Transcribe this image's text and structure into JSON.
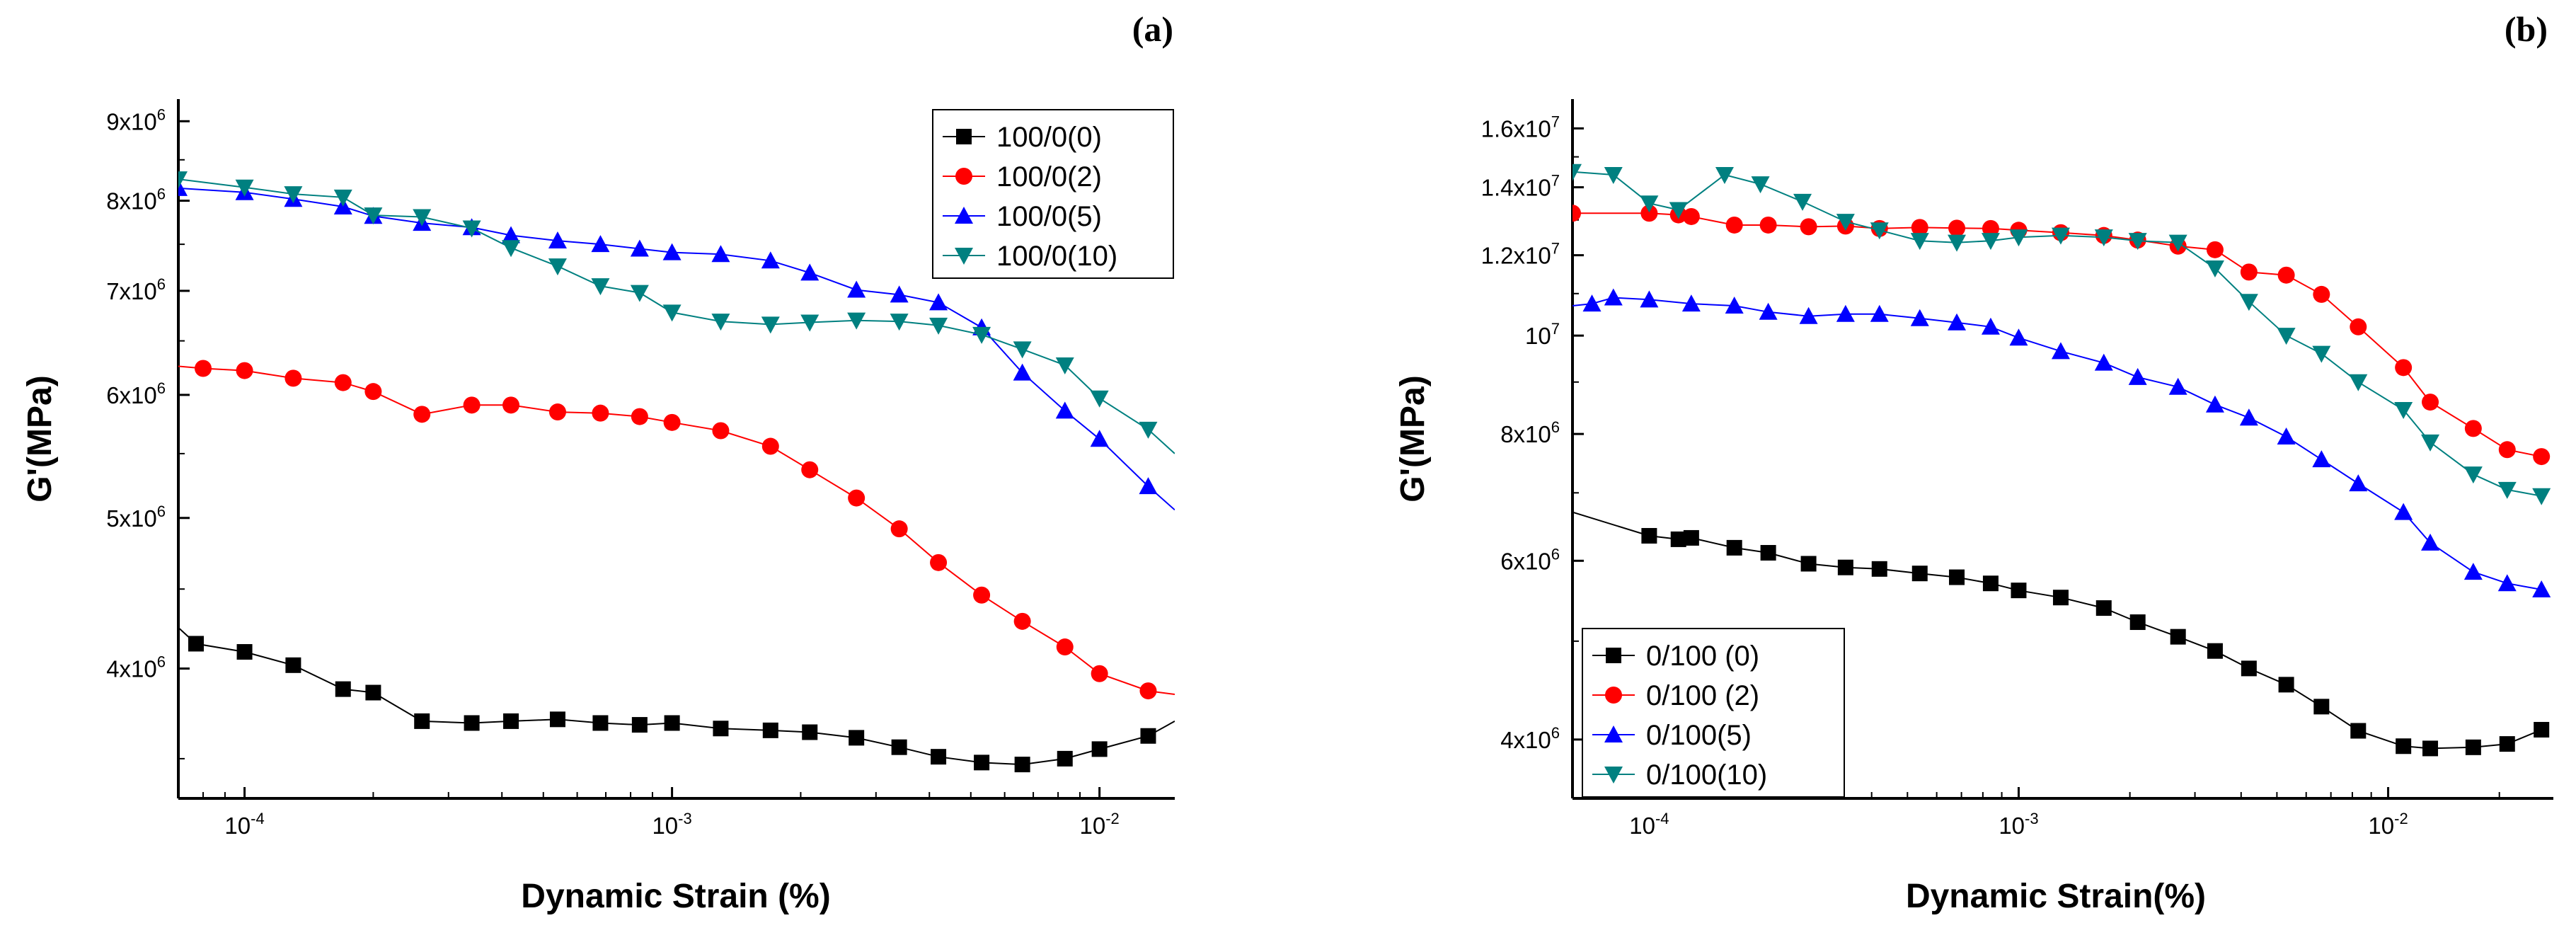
{
  "chart_data": [
    {
      "type": "line",
      "panel_label": "(a)",
      "xscale": "log",
      "yscale": "log",
      "xlabel": "Dynamic Strain (%)",
      "ylabel": "G'(MPa)",
      "xlim": [
        7e-05,
        0.015
      ],
      "ylim": [
        3300000,
        9300000
      ],
      "xticks": [
        {
          "value": 0.0001,
          "label": "10",
          "exp": "-4"
        },
        {
          "value": 0.001,
          "label": "10",
          "exp": "-3"
        },
        {
          "value": 0.01,
          "label": "10",
          "exp": "-2"
        }
      ],
      "yticks": [
        {
          "value": 4000000,
          "label": "4x10",
          "exp": "6"
        },
        {
          "value": 5000000,
          "label": "5x10",
          "exp": "6"
        },
        {
          "value": 6000000,
          "label": "6x10",
          "exp": "6"
        },
        {
          "value": 7000000,
          "label": "7x10",
          "exp": "6"
        },
        {
          "value": 8000000,
          "label": "8x10",
          "exp": "6"
        },
        {
          "value": 9000000,
          "label": "9x10",
          "exp": "6"
        }
      ],
      "legend_position": "top-right",
      "series": [
        {
          "name": "100/0(0)",
          "color": "#000000",
          "marker": "square",
          "x": [
            7e-05,
            7.7e-05,
            0.0001,
            0.00013,
            0.00017,
            0.0002,
            0.00026,
            0.00034,
            0.00042,
            0.00054,
            0.00068,
            0.00084,
            0.001,
            0.0013,
            0.0017,
            0.0021,
            0.0027,
            0.0034,
            0.0042,
            0.0053,
            0.0066,
            0.0083,
            0.01,
            0.013,
            0.015
          ],
          "y": [
            4250000,
            4150000,
            4100000,
            4020000,
            3880000,
            3860000,
            3700000,
            3690000,
            3700000,
            3710000,
            3690000,
            3680000,
            3690000,
            3660000,
            3650000,
            3640000,
            3610000,
            3560000,
            3510000,
            3480000,
            3470000,
            3500000,
            3550000,
            3620000,
            3700000
          ],
          "mark_from": 1,
          "mark_to": 23
        },
        {
          "name": "100/0(2)",
          "color": "#ff0000",
          "marker": "circle",
          "x": [
            7e-05,
            8e-05,
            0.0001,
            0.00013,
            0.00017,
            0.0002,
            0.00026,
            0.00034,
            0.00042,
            0.00054,
            0.00068,
            0.00084,
            0.001,
            0.0013,
            0.0017,
            0.0021,
            0.0027,
            0.0034,
            0.0042,
            0.0053,
            0.0066,
            0.0083,
            0.01,
            0.013,
            0.015
          ],
          "y": [
            6260000,
            6240000,
            6220000,
            6150000,
            6110000,
            6030000,
            5830000,
            5910000,
            5910000,
            5850000,
            5840000,
            5810000,
            5760000,
            5690000,
            5560000,
            5370000,
            5150000,
            4920000,
            4680000,
            4460000,
            4290000,
            4130000,
            3970000,
            3870000,
            3850000
          ],
          "mark_from": 1,
          "mark_to": 23
        },
        {
          "name": "100/0(5)",
          "color": "#0000ff",
          "marker": "triangle-up",
          "x": [
            7e-05,
            0.0001,
            0.00013,
            0.00017,
            0.0002,
            0.00026,
            0.00034,
            0.00042,
            0.00054,
            0.00068,
            0.00084,
            0.001,
            0.0013,
            0.0017,
            0.0021,
            0.0027,
            0.0034,
            0.0042,
            0.0053,
            0.0066,
            0.0083,
            0.01,
            0.013,
            0.015
          ],
          "y": [
            8150000,
            8100000,
            8020000,
            7930000,
            7820000,
            7740000,
            7690000,
            7600000,
            7540000,
            7500000,
            7450000,
            7410000,
            7390000,
            7320000,
            7190000,
            7010000,
            6960000,
            6880000,
            6630000,
            6200000,
            5860000,
            5620000,
            5240000,
            5060000
          ],
          "mark_from": 0,
          "mark_to": 22
        },
        {
          "name": "100/0(10)",
          "color": "#008080",
          "marker": "triangle-down",
          "x": [
            7e-05,
            0.0001,
            0.00013,
            0.00017,
            0.0002,
            0.00026,
            0.00034,
            0.00042,
            0.00054,
            0.00068,
            0.00084,
            0.001,
            0.0013,
            0.0017,
            0.0021,
            0.0027,
            0.0034,
            0.0042,
            0.0053,
            0.0066,
            0.0083,
            0.01,
            0.013,
            0.015
          ],
          "y": [
            8260000,
            8160000,
            8080000,
            8040000,
            7830000,
            7810000,
            7680000,
            7460000,
            7260000,
            7050000,
            6980000,
            6780000,
            6690000,
            6660000,
            6680000,
            6700000,
            6690000,
            6650000,
            6560000,
            6420000,
            6270000,
            5970000,
            5700000,
            5500000
          ],
          "mark_from": 0,
          "mark_to": 22
        }
      ],
      "legend": [
        "100/0(0)",
        "100/0(2)",
        "100/0(5)",
        "100/0(10)"
      ]
    },
    {
      "type": "line",
      "panel_label": "(b)",
      "xscale": "log",
      "yscale": "log",
      "xlabel": "Dynamic Strain(%)",
      "ylabel": "G'(MPa)",
      "xlim": [
        6.2e-05,
        0.028
      ],
      "ylim": [
        3500000,
        17100000
      ],
      "xticks": [
        {
          "value": 0.0001,
          "label": "10",
          "exp": "-4"
        },
        {
          "value": 0.001,
          "label": "10",
          "exp": "-3"
        },
        {
          "value": 0.01,
          "label": "10",
          "exp": "-2"
        }
      ],
      "yticks": [
        {
          "value": 4000000,
          "label": "4x10",
          "exp": "6"
        },
        {
          "value": 6000000,
          "label": "6x10",
          "exp": "6"
        },
        {
          "value": 8000000,
          "label": "8x10",
          "exp": "6"
        },
        {
          "value": 10000000,
          "label": "10",
          "exp": "7"
        },
        {
          "value": 12000000,
          "label": "1.2x10",
          "exp": "7"
        },
        {
          "value": 14000000,
          "label": "1.4x10",
          "exp": "7"
        },
        {
          "value": 16000000,
          "label": "1.6x10",
          "exp": "7"
        }
      ],
      "legend_position": "bottom-left",
      "series": [
        {
          "name": "0/100 (0)",
          "color": "#000000",
          "marker": "square",
          "x": [
            6.2e-05,
            0.0001,
            0.00012,
            0.00013,
            0.00017,
            0.00021,
            0.00027,
            0.00034,
            0.00042,
            0.00054,
            0.00068,
            0.00084,
            0.001,
            0.0013,
            0.0017,
            0.0021,
            0.0027,
            0.0034,
            0.0042,
            0.0053,
            0.0066,
            0.0083,
            0.011,
            0.013,
            0.017,
            0.021,
            0.026
          ],
          "y": [
            6700000,
            6350000,
            6300000,
            6320000,
            6180000,
            6110000,
            5960000,
            5910000,
            5890000,
            5830000,
            5780000,
            5700000,
            5610000,
            5520000,
            5390000,
            5220000,
            5050000,
            4890000,
            4700000,
            4530000,
            4310000,
            4080000,
            3940000,
            3920000,
            3930000,
            3960000,
            4090000
          ],
          "mark_from": 1,
          "mark_to": 26
        },
        {
          "name": "0/100 (2)",
          "color": "#ff0000",
          "marker": "circle",
          "x": [
            6.2e-05,
            0.0001,
            0.00012,
            0.00013,
            0.00017,
            0.00021,
            0.00027,
            0.00034,
            0.00042,
            0.00054,
            0.00068,
            0.00084,
            0.001,
            0.0013,
            0.0017,
            0.0021,
            0.0027,
            0.0034,
            0.0042,
            0.0053,
            0.0066,
            0.0083,
            0.011,
            0.013,
            0.017,
            0.021,
            0.026
          ],
          "y": [
            13200000,
            13200000,
            13150000,
            13100000,
            12850000,
            12850000,
            12800000,
            12820000,
            12750000,
            12780000,
            12760000,
            12750000,
            12700000,
            12630000,
            12550000,
            12420000,
            12250000,
            12150000,
            11550000,
            11470000,
            10980000,
            10200000,
            9300000,
            8600000,
            8100000,
            7720000,
            7600000
          ],
          "mark_from": 0,
          "mark_to": 26
        },
        {
          "name": "0/100(5)",
          "color": "#0000ff",
          "marker": "triangle-up",
          "x": [
            6.2e-05,
            7e-05,
            8e-05,
            0.0001,
            0.00013,
            0.00017,
            0.00021,
            0.00027,
            0.00034,
            0.00042,
            0.00054,
            0.00068,
            0.00084,
            0.001,
            0.0013,
            0.0017,
            0.0021,
            0.0027,
            0.0034,
            0.0042,
            0.0053,
            0.0066,
            0.0083,
            0.011,
            0.013,
            0.017,
            0.021,
            0.026
          ],
          "y": [
            10700000,
            10750000,
            10900000,
            10850000,
            10750000,
            10700000,
            10550000,
            10450000,
            10500000,
            10500000,
            10400000,
            10300000,
            10200000,
            9950000,
            9650000,
            9400000,
            9100000,
            8900000,
            8550000,
            8300000,
            7950000,
            7550000,
            7150000,
            6700000,
            6250000,
            5850000,
            5700000,
            5620000
          ],
          "mark_from": 1,
          "mark_to": 27
        },
        {
          "name": "0/100(10)",
          "color": "#008080",
          "marker": "triangle-down",
          "x": [
            6.2e-05,
            8e-05,
            0.0001,
            0.00012,
            0.00016,
            0.0002,
            0.00026,
            0.00034,
            0.00042,
            0.00054,
            0.00068,
            0.00084,
            0.001,
            0.0013,
            0.0017,
            0.0021,
            0.0027,
            0.0034,
            0.0042,
            0.0053,
            0.0066,
            0.0083,
            0.011,
            0.013,
            0.017,
            0.021,
            0.026
          ],
          "y": [
            14500000,
            14400000,
            13500000,
            13300000,
            14400000,
            14100000,
            13550000,
            12950000,
            12700000,
            12400000,
            12350000,
            12400000,
            12500000,
            12550000,
            12500000,
            12400000,
            12350000,
            11650000,
            10800000,
            10000000,
            9600000,
            9000000,
            8450000,
            7850000,
            7300000,
            7050000,
            6950000
          ],
          "mark_from": 0,
          "mark_to": 26
        }
      ],
      "legend": [
        "0/100 (0)",
        "0/100 (2)",
        "0/100(5)",
        "0/100(10)"
      ]
    }
  ]
}
